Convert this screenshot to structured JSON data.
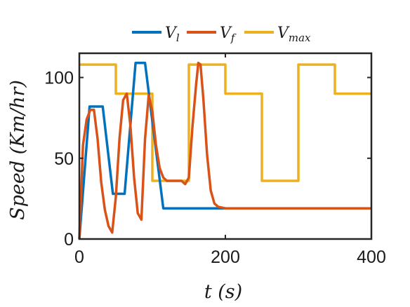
{
  "chart_data": {
    "type": "line",
    "xlabel": "t (s)",
    "ylabel": "Speed (Km/hr)",
    "xlim": [
      0,
      400
    ],
    "ylim": [
      0,
      115
    ],
    "xticks": [
      0,
      200,
      400
    ],
    "yticks": [
      0,
      50,
      100
    ],
    "grid": false,
    "legend_position": "top",
    "series": [
      {
        "name": "V_l",
        "color": "#0072BD",
        "x": [
          0,
          14,
          32,
          46,
          62,
          77,
          90,
          115,
          400
        ],
        "y": [
          0,
          82,
          82,
          28,
          28,
          109,
          109,
          19,
          19
        ]
      },
      {
        "name": "V_f",
        "color": "#D95319",
        "x": [
          0,
          5,
          10,
          15,
          20,
          25,
          30,
          35,
          40,
          45,
          50,
          55,
          60,
          65,
          70,
          75,
          80,
          85,
          90,
          95,
          100,
          105,
          110,
          115,
          120,
          130,
          140,
          145,
          150,
          155,
          160,
          163,
          166,
          170,
          175,
          180,
          185,
          190,
          200,
          250,
          300,
          400
        ],
        "y": [
          0,
          58,
          74,
          80,
          80,
          62,
          35,
          18,
          8,
          4,
          26,
          62,
          86,
          90,
          70,
          38,
          16,
          12,
          62,
          89,
          79,
          58,
          44,
          38,
          36,
          36,
          36,
          34,
          38,
          70,
          96,
          109,
          108,
          86,
          52,
          30,
          22,
          20,
          19,
          19,
          19,
          19
        ]
      },
      {
        "name": "V_max",
        "color": "#EDB120",
        "x": [
          0,
          50,
          50,
          100,
          100,
          150,
          150,
          200,
          200,
          250,
          250,
          300,
          300,
          350,
          350,
          400
        ],
        "y": [
          108,
          108,
          90,
          90,
          36,
          36,
          108,
          108,
          90,
          90,
          36,
          36,
          108,
          108,
          90,
          90
        ]
      }
    ]
  },
  "legend": {
    "items": [
      {
        "base": "V",
        "sub": "l",
        "color": "#0072BD"
      },
      {
        "base": "V",
        "sub": "f",
        "color": "#D95319"
      },
      {
        "base": "V",
        "sub": "max",
        "color": "#EDB120"
      }
    ]
  }
}
